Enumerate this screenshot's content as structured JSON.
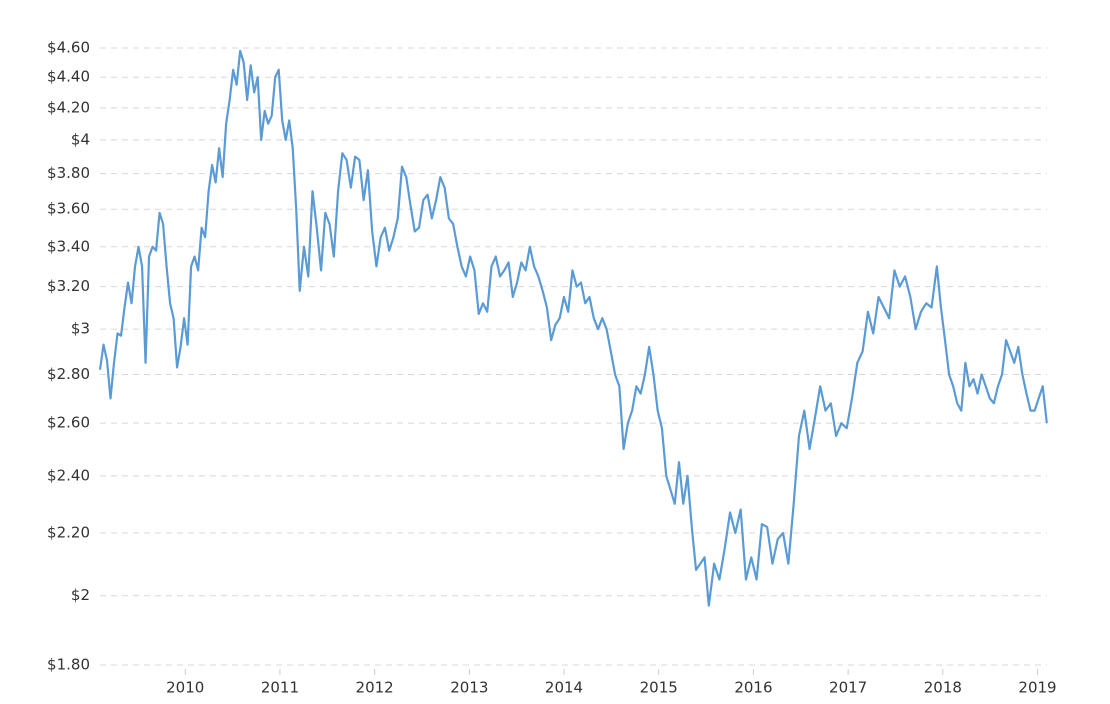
{
  "chart_data": {
    "type": "line",
    "log_scale": true,
    "grid": true,
    "xlim": [
      2009.1,
      2019.1
    ],
    "xticks": [
      2010,
      2011,
      2012,
      2013,
      2014,
      2015,
      2016,
      2017,
      2018,
      2019
    ],
    "ylim": [
      1.8,
      4.6
    ],
    "yticks": [
      {
        "value": 1.8,
        "label": "$1.80"
      },
      {
        "value": 2,
        "label": "$2"
      },
      {
        "value": 2.2,
        "label": "$2.20"
      },
      {
        "value": 2.4,
        "label": "$2.40"
      },
      {
        "value": 2.6,
        "label": "$2.60"
      },
      {
        "value": 2.8,
        "label": "$2.80"
      },
      {
        "value": 3,
        "label": "$3"
      },
      {
        "value": 3.2,
        "label": "$3.20"
      },
      {
        "value": 3.4,
        "label": "$3.40"
      },
      {
        "value": 3.6,
        "label": "$3.60"
      },
      {
        "value": 3.8,
        "label": "$3.80"
      },
      {
        "value": 4,
        "label": "$4"
      },
      {
        "value": 4.2,
        "label": "$4.20"
      },
      {
        "value": 4.4,
        "label": "$4.40"
      },
      {
        "value": 4.6,
        "label": "$4.60"
      }
    ],
    "x": [
      2009.1,
      2009.137,
      2009.174,
      2009.211,
      2009.248,
      2009.285,
      2009.322,
      2009.359,
      2009.396,
      2009.433,
      2009.47,
      2009.507,
      2009.544,
      2009.581,
      2009.618,
      2009.655,
      2009.692,
      2009.729,
      2009.766,
      2009.803,
      2009.84,
      2009.877,
      2009.914,
      2009.951,
      2009.988,
      2010.025,
      2010.062,
      2010.099,
      2010.136,
      2010.173,
      2010.21,
      2010.247,
      2010.284,
      2010.321,
      2010.358,
      2010.395,
      2010.432,
      2010.469,
      2010.506,
      2010.543,
      2010.58,
      2010.617,
      2010.654,
      2010.691,
      2010.728,
      2010.765,
      2010.802,
      2010.839,
      2010.876,
      2010.913,
      2010.95,
      2010.987,
      2011.024,
      2011.061,
      2011.098,
      2011.135,
      2011.172,
      2011.209,
      2011.254,
      2011.299,
      2011.344,
      2011.389,
      2011.434,
      2011.479,
      2011.524,
      2011.569,
      2011.614,
      2011.659,
      2011.704,
      2011.749,
      2011.794,
      2011.839,
      2011.884,
      2011.929,
      2011.974,
      2012.019,
      2012.064,
      2012.109,
      2012.154,
      2012.199,
      2012.244,
      2012.289,
      2012.334,
      2012.379,
      2012.424,
      2012.469,
      2012.514,
      2012.559,
      2012.604,
      2012.649,
      2012.694,
      2012.739,
      2012.784,
      2012.829,
      2012.874,
      2012.919,
      2012.964,
      2013.009,
      2013.054,
      2013.099,
      2013.144,
      2013.189,
      2013.234,
      2013.279,
      2013.324,
      2013.369,
      2013.414,
      2013.459,
      2013.504,
      2013.549,
      2013.594,
      2013.639,
      2013.684,
      2013.729,
      2013.774,
      2013.819,
      2013.864,
      2013.909,
      2013.954,
      2013.999,
      2014.044,
      2014.089,
      2014.134,
      2014.179,
      2014.224,
      2014.269,
      2014.314,
      2014.359,
      2014.404,
      2014.449,
      2014.494,
      2014.539,
      2014.584,
      2014.629,
      2014.674,
      2014.719,
      2014.764,
      2014.809,
      2014.854,
      2014.899,
      2014.944,
      2014.989,
      2015.034,
      2015.079,
      2015.124,
      2015.169,
      2015.214,
      2015.259,
      2015.304,
      2015.349,
      2015.394,
      2015.439,
      2015.484,
      2015.529,
      2015.585,
      2015.641,
      2015.697,
      2015.753,
      2015.809,
      2015.865,
      2015.921,
      2015.977,
      2016.033,
      2016.089,
      2016.145,
      2016.201,
      2016.257,
      2016.313,
      2016.369,
      2016.425,
      2016.481,
      2016.537,
      2016.593,
      2016.649,
      2016.705,
      2016.761,
      2016.817,
      2016.873,
      2016.929,
      2016.985,
      2017.041,
      2017.097,
      2017.153,
      2017.209,
      2017.265,
      2017.321,
      2017.377,
      2017.433,
      2017.489,
      2017.545,
      2017.601,
      2017.657,
      2017.713,
      2017.769,
      2017.825,
      2017.881,
      2017.937,
      2017.98,
      2018.023,
      2018.066,
      2018.109,
      2018.152,
      2018.195,
      2018.238,
      2018.281,
      2018.324,
      2018.367,
      2018.41,
      2018.453,
      2018.496,
      2018.539,
      2018.582,
      2018.625,
      2018.668,
      2018.711,
      2018.754,
      2018.797,
      2018.84,
      2018.883,
      2018.926,
      2018.969,
      2019.012,
      2019.055,
      2019.098
    ],
    "series": [
      {
        "color": "#5b9bd5",
        "values": [
          2.82,
          2.93,
          2.86,
          2.7,
          2.85,
          2.98,
          2.97,
          3.1,
          3.22,
          3.12,
          3.3,
          3.4,
          3.3,
          2.85,
          3.35,
          3.4,
          3.38,
          3.58,
          3.52,
          3.3,
          3.12,
          3.05,
          2.83,
          2.92,
          3.05,
          2.93,
          3.3,
          3.35,
          3.28,
          3.5,
          3.45,
          3.7,
          3.85,
          3.75,
          3.95,
          3.78,
          4.1,
          4.25,
          4.45,
          4.35,
          4.58,
          4.5,
          4.25,
          4.48,
          4.3,
          4.4,
          4.0,
          4.18,
          4.1,
          4.15,
          4.4,
          4.45,
          4.12,
          4.0,
          4.12,
          3.95,
          3.6,
          3.18,
          3.4,
          3.25,
          3.7,
          3.5,
          3.28,
          3.58,
          3.52,
          3.35,
          3.7,
          3.92,
          3.88,
          3.72,
          3.9,
          3.88,
          3.65,
          3.82,
          3.48,
          3.3,
          3.45,
          3.5,
          3.38,
          3.45,
          3.55,
          3.84,
          3.78,
          3.62,
          3.48,
          3.5,
          3.65,
          3.68,
          3.55,
          3.65,
          3.78,
          3.72,
          3.55,
          3.52,
          3.4,
          3.3,
          3.25,
          3.35,
          3.28,
          3.07,
          3.12,
          3.08,
          3.3,
          3.35,
          3.25,
          3.28,
          3.32,
          3.15,
          3.22,
          3.32,
          3.28,
          3.4,
          3.3,
          3.25,
          3.18,
          3.1,
          2.95,
          3.02,
          3.05,
          3.15,
          3.08,
          3.28,
          3.2,
          3.22,
          3.12,
          3.15,
          3.05,
          3.0,
          3.05,
          3.0,
          2.9,
          2.8,
          2.75,
          2.5,
          2.6,
          2.65,
          2.75,
          2.72,
          2.8,
          2.92,
          2.8,
          2.65,
          2.58,
          2.4,
          2.35,
          2.3,
          2.45,
          2.3,
          2.4,
          2.22,
          2.08,
          2.1,
          2.12,
          1.97,
          2.1,
          2.05,
          2.15,
          2.27,
          2.2,
          2.28,
          2.05,
          2.12,
          2.05,
          2.23,
          2.22,
          2.1,
          2.18,
          2.2,
          2.1,
          2.3,
          2.55,
          2.65,
          2.5,
          2.62,
          2.75,
          2.65,
          2.68,
          2.55,
          2.6,
          2.58,
          2.7,
          2.85,
          2.9,
          3.08,
          2.98,
          3.15,
          3.1,
          3.05,
          3.28,
          3.2,
          3.25,
          3.15,
          3.0,
          3.08,
          3.12,
          3.1,
          3.3,
          3.1,
          2.95,
          2.8,
          2.75,
          2.68,
          2.65,
          2.85,
          2.75,
          2.78,
          2.72,
          2.8,
          2.75,
          2.7,
          2.68,
          2.75,
          2.8,
          2.95,
          2.9,
          2.85,
          2.92,
          2.8,
          2.72,
          2.65,
          2.65,
          2.7,
          2.75,
          2.6
        ]
      }
    ]
  }
}
